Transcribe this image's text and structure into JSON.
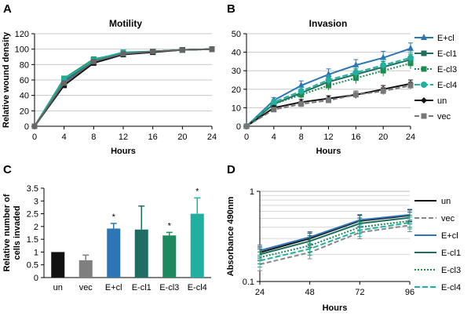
{
  "chart_data": [
    {
      "panel": "A",
      "type": "line",
      "title": "Motility",
      "xlabel": "Hours",
      "ylabel": "Relative wound density",
      "x": [
        0,
        4,
        8,
        12,
        16,
        20,
        24
      ],
      "xticks": [
        "0",
        "4",
        "8",
        "12",
        "16",
        "20",
        "24"
      ],
      "ylim": [
        0,
        120
      ],
      "yticks": [
        "0",
        "20",
        "40",
        "60",
        "80",
        "100",
        "120"
      ],
      "grid": true,
      "series": [
        {
          "name": "E+cl",
          "values": [
            0,
            58,
            86,
            95,
            97,
            99,
            100
          ],
          "color": "#2e75b6"
        },
        {
          "name": "E-cl1",
          "values": [
            0,
            60,
            85,
            94,
            97,
            99,
            100
          ],
          "color": "#1e6e5e"
        },
        {
          "name": "E-cl3",
          "values": [
            0,
            62,
            87,
            95,
            97,
            99,
            100
          ],
          "color": "#1d8a4e"
        },
        {
          "name": "E-cl4",
          "values": [
            0,
            61,
            86,
            96,
            97,
            99,
            100
          ],
          "color": "#20b0a0"
        },
        {
          "name": "un",
          "values": [
            0,
            53,
            82,
            93,
            96,
            99,
            100
          ],
          "color": "#111111"
        },
        {
          "name": "vec",
          "values": [
            0,
            56,
            84,
            94,
            97,
            99,
            100
          ],
          "color": "#666666"
        }
      ]
    },
    {
      "panel": "B",
      "type": "line",
      "title": "Invasion",
      "xlabel": "Hours",
      "ylabel": "",
      "x": [
        0,
        4,
        8,
        12,
        16,
        20,
        24
      ],
      "xticks": [
        "0",
        "4",
        "8",
        "12",
        "16",
        "20",
        "24"
      ],
      "ylim": [
        0,
        50
      ],
      "yticks": [
        "0",
        "10",
        "20",
        "30",
        "40",
        "50"
      ],
      "grid": true,
      "legend": "right",
      "series": [
        {
          "name": "E+cl",
          "values": [
            0,
            14,
            22,
            28,
            33,
            37,
            42
          ],
          "errors": [
            0,
            1.5,
            2.5,
            3,
            3,
            3.5,
            3
          ],
          "color": "#2e75b6",
          "dash": "",
          "marker": "triangle"
        },
        {
          "name": "E-cl1",
          "values": [
            0,
            12,
            18,
            24,
            28,
            32,
            36
          ],
          "errors": [
            0,
            1.5,
            2,
            2.5,
            3,
            3,
            3
          ],
          "color": "#1e6e5e",
          "dash": "",
          "marker": "square"
        },
        {
          "name": "E-cl3",
          "values": [
            0,
            12,
            17,
            22,
            26,
            30,
            34
          ],
          "errors": [
            0,
            1.5,
            2,
            2.5,
            3,
            3,
            3
          ],
          "color": "#1d8a4e",
          "dash": "2,2",
          "marker": "square"
        },
        {
          "name": "E-cl4",
          "values": [
            0,
            13,
            19,
            25,
            29,
            33,
            37
          ],
          "errors": [
            0,
            1.5,
            2,
            2.5,
            3,
            3,
            3
          ],
          "color": "#20b0a0",
          "dash": "7,3",
          "marker": "circle"
        },
        {
          "name": "un",
          "values": [
            0,
            10,
            13,
            15,
            17,
            20,
            23
          ],
          "errors": [
            0,
            1,
            1.5,
            1.5,
            2,
            2,
            2
          ],
          "color": "#111111",
          "dash": "",
          "marker": "diamond"
        },
        {
          "name": "vec",
          "values": [
            0,
            9,
            12,
            14,
            17,
            19,
            22
          ],
          "errors": [
            0,
            1,
            1.5,
            1.5,
            2,
            2,
            2
          ],
          "color": "#777777",
          "dash": "6,3",
          "marker": "square"
        }
      ]
    },
    {
      "panel": "C",
      "type": "bar",
      "title": "",
      "xlabel": "",
      "ylabel": "Relative number of cells invaded",
      "ylabel_lines": [
        "Relative number of",
        "cells invaded"
      ],
      "categories": [
        "un",
        "vec",
        "E+cl",
        "E-cl1",
        "E-cl3",
        "E-cl4"
      ],
      "values": [
        1.0,
        0.68,
        1.92,
        1.88,
        1.65,
        2.5
      ],
      "errors": [
        0.0,
        0.2,
        0.2,
        0.92,
        0.12,
        0.62
      ],
      "significance": [
        "",
        "",
        "*",
        "",
        "*",
        "*"
      ],
      "colors": [
        "#111111",
        "#7f7f7f",
        "#2e75b6",
        "#1e6e66",
        "#1d8a5e",
        "#20b0a0"
      ],
      "ylim": [
        0,
        3.5
      ],
      "yticks": [
        "0",
        "0.5",
        "1",
        "1.5",
        "2",
        "2.5",
        "3",
        "3.5"
      ],
      "grid": false
    },
    {
      "panel": "D",
      "type": "line",
      "title": "",
      "xlabel": "Hours",
      "ylabel": "Absorbance 490nm",
      "yscale": "log",
      "x": [
        24,
        48,
        72,
        96
      ],
      "xticks": [
        "24",
        "48",
        "72",
        "96"
      ],
      "ylim": [
        0.1,
        1
      ],
      "yticks": [
        "0.1",
        "1"
      ],
      "grid": true,
      "legend": "right",
      "series": [
        {
          "name": "un",
          "values": [
            0.21,
            0.3,
            0.47,
            0.54
          ],
          "color": "#111111",
          "dash": ""
        },
        {
          "name": "vec",
          "values": [
            0.155,
            0.21,
            0.35,
            0.42
          ],
          "color": "#888888",
          "dash": "6,3"
        },
        {
          "name": "E+cl",
          "values": [
            0.22,
            0.31,
            0.48,
            0.55
          ],
          "color": "#2e75b6",
          "dash": ""
        },
        {
          "name": "E-cl1",
          "values": [
            0.2,
            0.28,
            0.44,
            0.51
          ],
          "color": "#1e6e5e",
          "dash": ""
        },
        {
          "name": "E-cl3",
          "values": [
            0.185,
            0.25,
            0.4,
            0.47
          ],
          "color": "#1d8a4e",
          "dash": "2,2"
        },
        {
          "name": "E-cl4",
          "values": [
            0.17,
            0.23,
            0.37,
            0.45
          ],
          "color": "#20b0a0",
          "dash": "7,3"
        }
      ]
    }
  ]
}
